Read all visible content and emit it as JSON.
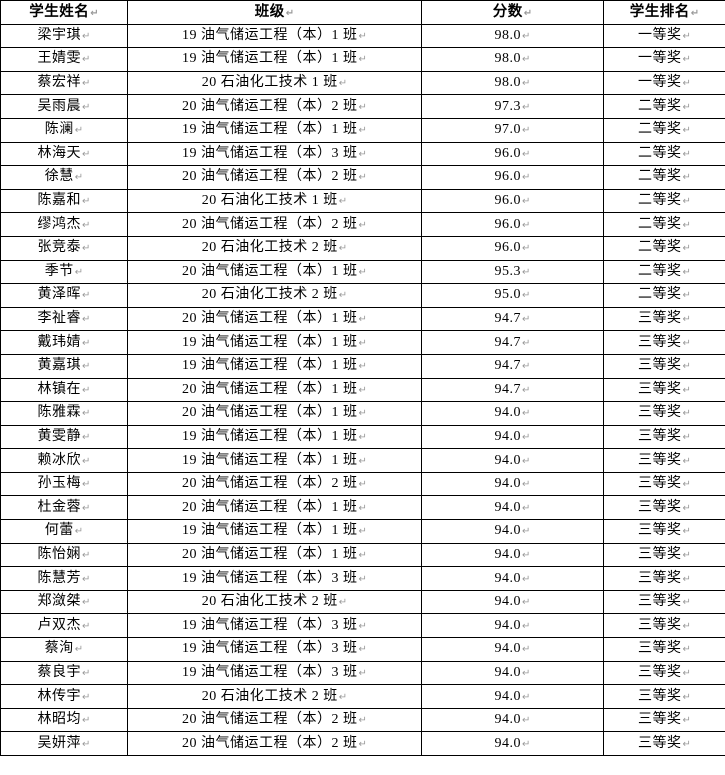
{
  "colors": {
    "background": "#ffffff",
    "border": "#000000",
    "text": "#000000",
    "formatting_mark": "#9a9a9a"
  },
  "table": {
    "cell_mark": "↵",
    "columns": [
      {
        "label": "学生姓名"
      },
      {
        "label": "班级"
      },
      {
        "label": "分数"
      },
      {
        "label": "学生排名"
      }
    ],
    "rows": [
      {
        "name": "梁宇琪",
        "class": "19 油气储运工程（本）1 班",
        "score": "98.0",
        "rank": "一等奖"
      },
      {
        "name": "王婧雯",
        "class": "19 油气储运工程（本）1 班",
        "score": "98.0",
        "rank": "一等奖"
      },
      {
        "name": "蔡宏祥",
        "class": "20 石油化工技术 1 班",
        "score": "98.0",
        "rank": "一等奖"
      },
      {
        "name": "吴雨晨",
        "class": "20 油气储运工程（本）2 班",
        "score": "97.3",
        "rank": "二等奖"
      },
      {
        "name": "陈澜",
        "class": "19 油气储运工程（本）1 班",
        "score": "97.0",
        "rank": "二等奖"
      },
      {
        "name": "林海天",
        "class": "19 油气储运工程（本）3 班",
        "score": "96.0",
        "rank": "二等奖"
      },
      {
        "name": "徐慧",
        "class": "20 油气储运工程（本）2 班",
        "score": "96.0",
        "rank": "二等奖"
      },
      {
        "name": "陈嘉和",
        "class": "20 石油化工技术 1 班",
        "score": "96.0",
        "rank": "二等奖"
      },
      {
        "name": "缪鸿杰",
        "class": "20 油气储运工程（本）2 班",
        "score": "96.0",
        "rank": "二等奖"
      },
      {
        "name": "张竞泰",
        "class": "20 石油化工技术 2 班",
        "score": "96.0",
        "rank": "二等奖"
      },
      {
        "name": "季节",
        "class": "20 油气储运工程（本）1 班",
        "score": "95.3",
        "rank": "二等奖"
      },
      {
        "name": "黄泽晖",
        "class": "20 石油化工技术 2 班",
        "score": "95.0",
        "rank": "二等奖"
      },
      {
        "name": "李祉睿",
        "class": "20 油气储运工程（本）1 班",
        "score": "94.7",
        "rank": "三等奖"
      },
      {
        "name": "戴玮婧",
        "class": "19 油气储运工程（本）1 班",
        "score": "94.7",
        "rank": "三等奖"
      },
      {
        "name": "黄嘉琪",
        "class": "19 油气储运工程（本）1 班",
        "score": "94.7",
        "rank": "三等奖"
      },
      {
        "name": "林镇在",
        "class": "20 油气储运工程（本）1 班",
        "score": "94.7",
        "rank": "三等奖"
      },
      {
        "name": "陈雅霖",
        "class": "20 油气储运工程（本）1 班",
        "score": "94.0",
        "rank": "三等奖"
      },
      {
        "name": "黄雯静",
        "class": "19 油气储运工程（本）1 班",
        "score": "94.0",
        "rank": "三等奖"
      },
      {
        "name": "赖冰欣",
        "class": "19 油气储运工程（本）1 班",
        "score": "94.0",
        "rank": "三等奖"
      },
      {
        "name": "孙玉梅",
        "class": "20 油气储运工程（本）2 班",
        "score": "94.0",
        "rank": "三等奖"
      },
      {
        "name": "杜金蓉",
        "class": "20 油气储运工程（本）1 班",
        "score": "94.0",
        "rank": "三等奖"
      },
      {
        "name": "何蕾",
        "class": "19 油气储运工程（本）1 班",
        "score": "94.0",
        "rank": "三等奖"
      },
      {
        "name": "陈怡娴",
        "class": "20 油气储运工程（本）1 班",
        "score": "94.0",
        "rank": "三等奖"
      },
      {
        "name": "陈慧芳",
        "class": "19 油气储运工程（本）3 班",
        "score": "94.0",
        "rank": "三等奖"
      },
      {
        "name": "郑潋桀",
        "class": "20 石油化工技术 2 班",
        "score": "94.0",
        "rank": "三等奖"
      },
      {
        "name": "卢双杰",
        "class": "19 油气储运工程（本）3 班",
        "score": "94.0",
        "rank": "三等奖"
      },
      {
        "name": "蔡洵",
        "class": "19 油气储运工程（本）3 班",
        "score": "94.0",
        "rank": "三等奖"
      },
      {
        "name": "蔡良宇",
        "class": "19 油气储运工程（本）3 班",
        "score": "94.0",
        "rank": "三等奖"
      },
      {
        "name": "林传宇",
        "class": "20 石油化工技术 2 班",
        "score": "94.0",
        "rank": "三等奖"
      },
      {
        "name": "林昭均",
        "class": "20 油气储运工程（本）2 班",
        "score": "94.0",
        "rank": "三等奖"
      },
      {
        "name": "吴妍萍",
        "class": "20 油气储运工程（本）2 班",
        "score": "94.0",
        "rank": "三等奖"
      }
    ]
  }
}
